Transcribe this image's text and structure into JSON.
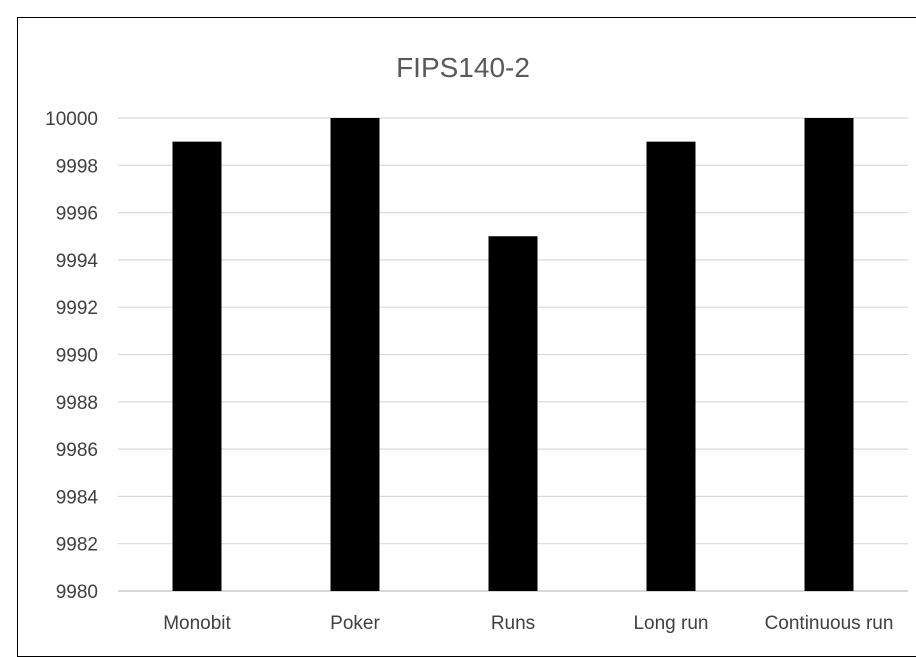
{
  "chart_data": {
    "type": "bar",
    "title": "FIPS140-2",
    "xlabel": "",
    "ylabel": "",
    "categories": [
      "Monobit",
      "Poker",
      "Runs",
      "Long run",
      "Continuous run"
    ],
    "values": [
      9999,
      10000,
      9995,
      9999,
      10000
    ],
    "ylim": [
      9980,
      10000
    ],
    "yticks": [
      9980,
      9982,
      9984,
      9986,
      9988,
      9990,
      9992,
      9994,
      9996,
      9998,
      10000
    ],
    "grid": true,
    "legend": "none",
    "colors": {
      "bar": "#000000",
      "grid": "#d9d9d9",
      "axis": "#bfbfbf",
      "title": "#595959",
      "tick": "#404040"
    }
  }
}
